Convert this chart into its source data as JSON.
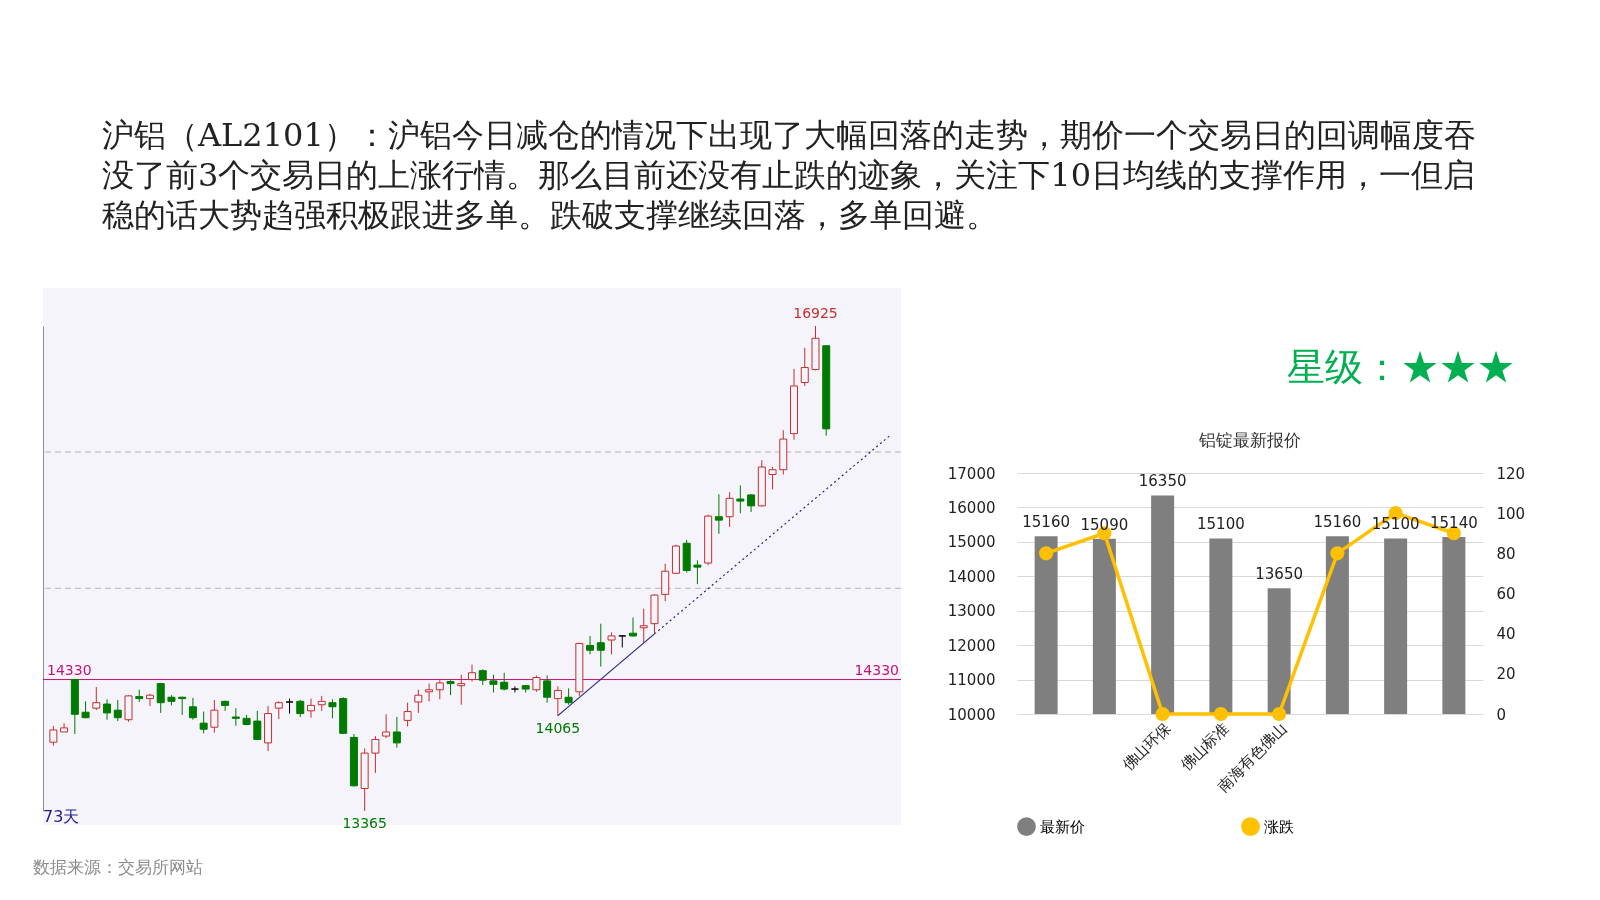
{
  "chart_data": [
    {
      "type": "candlestick",
      "title": "沪铝（AL2101）：沪铝今日减仓的情况下出现了大幅回落的走势，期价一个交易日的回调幅度吞没了前3个交易日的上涨行情。那么目前还没有止跌的迹象，关注下10日均线的支撑作用，一但启稳的话大势趋强积极跟进多单。跌破支撑继续回落，多单回避。",
      "categories": [
        null,
        null,
        null,
        null,
        null,
        null,
        null,
        null,
        null,
        null,
        null,
        null,
        null,
        null,
        null,
        null,
        null,
        null,
        null,
        null,
        null,
        null,
        null,
        null,
        null,
        null,
        null,
        null,
        null,
        null,
        null,
        null,
        null,
        null,
        null,
        null,
        null,
        null,
        null,
        null,
        null,
        null,
        null,
        null,
        null,
        null,
        null,
        null,
        null,
        null,
        null,
        null,
        null,
        null,
        null,
        null,
        null,
        null,
        null,
        null,
        null,
        null,
        null,
        null,
        null,
        null,
        null,
        null,
        null,
        null,
        null,
        null,
        null,
        null,
        null,
        null,
        null,
        null,
        null
      ],
      "ohlc": [
        [
          13870,
          13990,
          13845,
          13960
        ],
        [
          13945,
          14010,
          13945,
          13975
        ],
        [
          14330,
          14335,
          13930,
          14075
        ],
        [
          14090,
          14170,
          14045,
          14050
        ],
        [
          14120,
          14275,
          14105,
          14160
        ],
        [
          14150,
          14185,
          14035,
          14085
        ],
        [
          14105,
          14180,
          14025,
          14050
        ],
        [
          14035,
          14215,
          14020,
          14210
        ],
        [
          14205,
          14255,
          14165,
          14190
        ],
        [
          14190,
          14225,
          14135,
          14215
        ],
        [
          14300,
          14305,
          14085,
          14160
        ],
        [
          14200,
          14215,
          14140,
          14170
        ],
        [
          14200,
          14205,
          14070,
          14190
        ],
        [
          14130,
          14195,
          14035,
          14050
        ],
        [
          14010,
          14095,
          13935,
          13965
        ],
        [
          13980,
          14180,
          13940,
          14105
        ],
        [
          14170,
          14175,
          14100,
          14140
        ],
        [
          14055,
          14120,
          13990,
          14045
        ],
        [
          14045,
          14070,
          13995,
          14000
        ],
        [
          14025,
          14100,
          13885,
          13890
        ],
        [
          13865,
          14135,
          13805,
          14080
        ],
        [
          14120,
          14170,
          14040,
          14160
        ],
        [
          14165,
          14190,
          14080,
          14165
        ],
        [
          14170,
          14180,
          14055,
          14080
        ],
        [
          14100,
          14190,
          14050,
          14140
        ],
        [
          14145,
          14210,
          14100,
          14170
        ],
        [
          14160,
          14185,
          14045,
          14130
        ],
        [
          14190,
          14200,
          13930,
          13935
        ],
        [
          13905,
          13930,
          13545,
          13550
        ],
        [
          13530,
          13825,
          13365,
          13790
        ],
        [
          13790,
          13915,
          13645,
          13890
        ],
        [
          13915,
          14075,
          13900,
          13945
        ],
        [
          13945,
          14055,
          13830,
          13865
        ],
        [
          14030,
          14160,
          13985,
          14095
        ],
        [
          14165,
          14255,
          14085,
          14215
        ],
        [
          14240,
          14300,
          14170,
          14255
        ],
        [
          14255,
          14325,
          14185,
          14305
        ],
        [
          14315,
          14325,
          14215,
          14300
        ],
        [
          14285,
          14365,
          14145,
          14300
        ],
        [
          14330,
          14440,
          14315,
          14380
        ],
        [
          14395,
          14405,
          14290,
          14325
        ],
        [
          14320,
          14365,
          14235,
          14295
        ],
        [
          14310,
          14380,
          14250,
          14260
        ],
        [
          14260,
          14280,
          14235,
          14260
        ],
        [
          14285,
          14290,
          14235,
          14260
        ],
        [
          14255,
          14360,
          14240,
          14345
        ],
        [
          14320,
          14360,
          14160,
          14200
        ],
        [
          14190,
          14280,
          14065,
          14250
        ],
        [
          14200,
          14265,
          14145,
          14160
        ],
        [
          14240,
          14600,
          14210,
          14595
        ],
        [
          14580,
          14650,
          14515,
          14545
        ],
        [
          14600,
          14740,
          14425,
          14545
        ],
        [
          14620,
          14675,
          14515,
          14650
        ],
        [
          14650,
          14655,
          14565,
          14650
        ],
        [
          14670,
          14785,
          14645,
          14650
        ],
        [
          14710,
          14850,
          14600,
          14725
        ],
        [
          14740,
          14955,
          14670,
          14950
        ],
        [
          14955,
          15180,
          14905,
          15125
        ],
        [
          15110,
          15320,
          15105,
          15310
        ],
        [
          15330,
          15355,
          15115,
          15130
        ],
        [
          15170,
          15205,
          15030,
          15155
        ],
        [
          15185,
          15540,
          15170,
          15530
        ],
        [
          15525,
          15690,
          15400,
          15500
        ],
        [
          15525,
          15705,
          15450,
          15660
        ],
        [
          15655,
          15755,
          15550,
          15640
        ],
        [
          15685,
          15690,
          15560,
          15605
        ],
        [
          15605,
          15940,
          15600,
          15890
        ],
        [
          15835,
          15890,
          15725,
          15870
        ],
        [
          15870,
          16160,
          15835,
          16095
        ],
        [
          16135,
          16610,
          16090,
          16485
        ],
        [
          16510,
          16765,
          16485,
          16620
        ],
        [
          16605,
          16925,
          16600,
          16835
        ],
        [
          16780,
          16780,
          16120,
          16170
        ],
        null,
        null,
        null,
        null,
        null,
        null
      ],
      "colors": [
        "#c62f2f",
        "#c62f2f",
        "#007a00",
        "#007a00",
        "#c62f2f",
        "#007a00",
        "#007a00",
        "#c62f2f",
        "#007a00",
        "#c62f2f",
        "#007a00",
        "#007a00",
        "#007a00",
        "#007a00",
        "#007a00",
        "#c62f2f",
        "#007a00",
        "#007a00",
        "#007a00",
        "#007a00",
        "#c62f2f",
        "#c62f2f",
        "#000000",
        "#007a00",
        "#c62f2f",
        "#c62f2f",
        "#007a00",
        "#007a00",
        "#007a00",
        "#c62f2f",
        "#c62f2f",
        "#c62f2f",
        "#007a00",
        "#c62f2f",
        "#c62f2f",
        "#c62f2f",
        "#c62f2f",
        "#007a00",
        "#c62f2f",
        "#c62f2f",
        "#007a00",
        "#007a00",
        "#007a00",
        "#000000",
        "#007a00",
        "#c62f2f",
        "#007a00",
        "#c62f2f",
        "#007a00",
        "#c62f2f",
        "#007a00",
        "#007a00",
        "#c62f2f",
        "#000000",
        "#007a00",
        "#c62f2f",
        "#c62f2f",
        "#c62f2f",
        "#c62f2f",
        "#007a00",
        "#007a00",
        "#c62f2f",
        "#007a00",
        "#c62f2f",
        "#007a00",
        "#007a00",
        "#c62f2f",
        "#c62f2f",
        "#c62f2f",
        "#c62f2f",
        "#c62f2f",
        "#c62f2f",
        "#007a00",
        null,
        null,
        null,
        null,
        null,
        null
      ],
      "series": [
        {
          "type": "line",
          "line_style": "solid",
          "color": "#26268c",
          "values": [
            null,
            null,
            null,
            null,
            null,
            null,
            null,
            null,
            null,
            null,
            null,
            null,
            null,
            null,
            null,
            null,
            null,
            null,
            null,
            null,
            null,
            null,
            null,
            null,
            null,
            null,
            null,
            null,
            null,
            null,
            null,
            null,
            null,
            null,
            null,
            null,
            null,
            null,
            null,
            null,
            null,
            null,
            null,
            null,
            null,
            null,
            null,
            14065,
            null,
            null,
            null,
            null,
            null,
            null,
            null,
            null,
            14665,
            null,
            null,
            null,
            null,
            null,
            null,
            null,
            null,
            null,
            null,
            null,
            null,
            null,
            null,
            null,
            null,
            null,
            null,
            null,
            null,
            null,
            null
          ]
        },
        {
          "type": "line",
          "line_style": "dotted",
          "color": "#26268c",
          "values": [
            null,
            null,
            null,
            null,
            null,
            null,
            null,
            null,
            null,
            null,
            null,
            null,
            null,
            null,
            null,
            null,
            null,
            null,
            null,
            null,
            null,
            null,
            null,
            null,
            null,
            null,
            null,
            null,
            null,
            null,
            null,
            null,
            null,
            null,
            null,
            null,
            null,
            null,
            null,
            null,
            null,
            null,
            null,
            null,
            null,
            null,
            null,
            null,
            null,
            null,
            null,
            null,
            null,
            null,
            null,
            null,
            14665,
            null,
            null,
            null,
            null,
            null,
            null,
            null,
            null,
            null,
            null,
            null,
            null,
            null,
            null,
            null,
            null,
            null,
            null,
            null,
            null,
            null,
            16125
          ]
        }
      ],
      "tick_labels": false,
      "ref_lines": [
        {
          "axis": "y",
          "value": 16000,
          "line_style": "dashed",
          "color": "#b4b4b4"
        },
        {
          "axis": "y",
          "value": 15000,
          "line_style": "dashed",
          "color": "#b4b4b4"
        },
        {
          "axis": "y",
          "value": 14330,
          "label": "14330",
          "color": "#c8107a"
        }
      ],
      "annotations": [
        "73天",
        {
          "text": "16925",
          "y": 16925
        },
        {
          "text": "14065",
          "y": 14065
        },
        {
          "text": "13365",
          "y": 13365
        },
        "数据来源：交易所网站"
      ]
    },
    {
      "type": "bar",
      "title": "铝锭最新报价",
      "categories": [
        null,
        null,
        "佛山环保",
        "佛山标准",
        "南海有色佛山",
        null,
        null,
        null
      ],
      "series": [
        {
          "name": "最新价",
          "type": "bar",
          "color": "#7f7f7f",
          "values": [
            15160,
            15090,
            16350,
            15100,
            13650,
            15160,
            15100,
            15140
          ],
          "value_labels": [
            "15160",
            "15090",
            "16350",
            "15100",
            "13650",
            "15160",
            "15100",
            "15140"
          ]
        },
        {
          "name": "涨跌",
          "type": "line",
          "axis": "y2",
          "color": "#ffc000",
          "values": [
            80,
            90,
            0,
            0,
            0,
            80,
            100,
            90
          ]
        }
      ],
      "ylim": [
        10000,
        17000
      ],
      "yticks": [
        10000,
        11000,
        12000,
        13000,
        14000,
        15000,
        16000,
        17000
      ],
      "y2lim": [
        0,
        120
      ],
      "y2ticks": [
        0,
        20,
        40,
        60,
        80,
        100,
        120
      ],
      "grid": "y",
      "legend": "bottom",
      "marker": "circle",
      "annotations": [
        "星级：★★★"
      ]
    }
  ]
}
